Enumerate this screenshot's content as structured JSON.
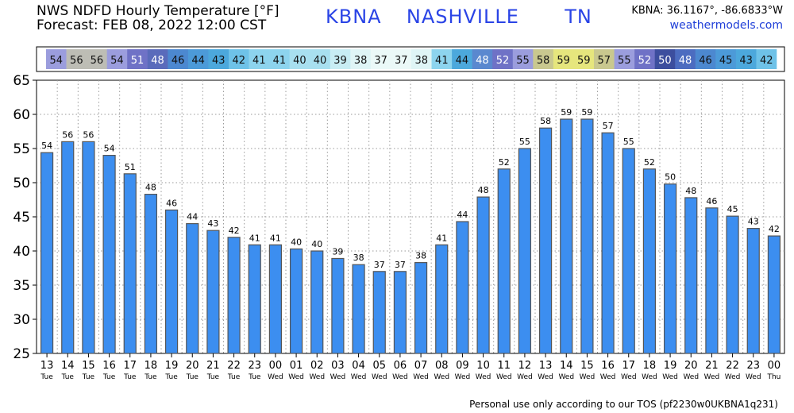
{
  "header": {
    "title": "NWS NDFD Hourly Temperature [°F]",
    "forecast": "Forecast: FEB 08, 2022 12:00 CST",
    "station": "KBNA",
    "city": "NASHVILLE",
    "state": "TN",
    "coords": "KBNA: 36.1167°, -86.6833°W",
    "website": "weathermodels.com"
  },
  "footer": {
    "tos": "Personal use only according to our TOS (pf2230w0UKBNA1q231)"
  },
  "colors": {
    "bar": "#3c8ef0",
    "bar_border": "#555555",
    "title_blue": "#2a44e6",
    "link_blue": "#1f3fd8"
  },
  "chart_data": {
    "type": "bar",
    "hours": [
      "13",
      "14",
      "15",
      "16",
      "17",
      "18",
      "19",
      "20",
      "21",
      "22",
      "23",
      "00",
      "01",
      "02",
      "03",
      "04",
      "05",
      "06",
      "07",
      "08",
      "09",
      "10",
      "11",
      "12",
      "13",
      "14",
      "15",
      "16",
      "17",
      "18",
      "19",
      "20",
      "21",
      "22",
      "23",
      "00"
    ],
    "days": [
      "Tue",
      "Tue",
      "Tue",
      "Tue",
      "Tue",
      "Tue",
      "Tue",
      "Tue",
      "Tue",
      "Tue",
      "Tue",
      "Wed",
      "Wed",
      "Wed",
      "Wed",
      "Wed",
      "Wed",
      "Wed",
      "Wed",
      "Wed",
      "Wed",
      "Wed",
      "Wed",
      "Wed",
      "Wed",
      "Wed",
      "Wed",
      "Wed",
      "Wed",
      "Wed",
      "Wed",
      "Wed",
      "Wed",
      "Wed",
      "Wed",
      "Thu"
    ],
    "values": [
      54.4,
      56,
      56,
      54,
      51.3,
      48.3,
      46,
      44,
      43,
      42,
      40.9,
      40.9,
      40.3,
      40,
      38.9,
      38,
      37,
      37,
      38.3,
      40.9,
      44.3,
      47.9,
      52,
      55,
      58,
      59.3,
      59.3,
      57.3,
      55,
      52,
      49.8,
      47.8,
      46.3,
      45.1,
      43.3,
      42.2
    ],
    "labels": [
      "54",
      "56",
      "56",
      "54",
      "51",
      "48",
      "46",
      "44",
      "43",
      "42",
      "41",
      "41",
      "40",
      "40",
      "39",
      "38",
      "37",
      "37",
      "38",
      "41",
      "44",
      "48",
      "52",
      "55",
      "58",
      "59",
      "59",
      "57",
      "55",
      "52",
      "50",
      "48",
      "46",
      "45",
      "43",
      "42"
    ],
    "ylim": [
      25,
      65
    ],
    "yticks": [
      "25",
      "30",
      "35",
      "40",
      "45",
      "50",
      "55",
      "60",
      "65"
    ],
    "grid": true,
    "strip_colors": [
      "#9b9ddd",
      "#bdbdb5",
      "#bdbdb5",
      "#9b9ddd",
      "#6f72c6",
      "#5a6bbb",
      "#4c88d0",
      "#4c9ad8",
      "#4ca8dc",
      "#6ec2e8",
      "#8dd4ee",
      "#8dd4ee",
      "#a8e0f0",
      "#a8e0f0",
      "#c8edf4",
      "#dff5f6",
      "#ebf9f8",
      "#ebf9f8",
      "#dff5f6",
      "#8dd4ee",
      "#4ca8dc",
      "#5a88cf",
      "#6f72c6",
      "#9b9ddd",
      "#c9c88f",
      "#e6e67d",
      "#e6e67d",
      "#c9c88f",
      "#9b9ddd",
      "#6f72c6",
      "#3c4e9e",
      "#4c6cc0",
      "#4c88d0",
      "#4c9ad8",
      "#4ca8dc",
      "#6ec2e8"
    ]
  }
}
